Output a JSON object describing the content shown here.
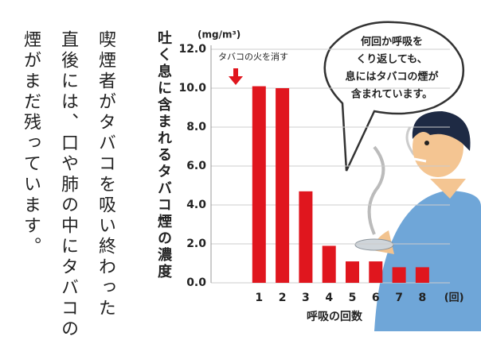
{
  "text": {
    "lines": [
      "喫煙者がタバコを吸い終わった",
      "直後には、口や肺の中にタバコの",
      "煙がまだ残っています。"
    ]
  },
  "bubble": {
    "lines": [
      "何回か呼吸を",
      "くり返しても、",
      "息にはタバコの煙が",
      "含まれています。"
    ]
  },
  "chart_data": {
    "type": "bar",
    "y_label": "吐く息に含まれるタバコ煙の濃度",
    "unit": "(mg/m³)",
    "annotation": "タバコの火を消す",
    "x_label": "呼吸の回数",
    "x_unit": "(回)",
    "categories": [
      "1",
      "2",
      "3",
      "4",
      "5",
      "6",
      "7",
      "8"
    ],
    "values": [
      10.1,
      10.0,
      4.7,
      1.9,
      1.1,
      1.1,
      0.8,
      0.8
    ],
    "color": "#e0161e",
    "ylim": [
      0,
      12
    ],
    "yticks": [
      {
        "value": 0,
        "label": "0.0"
      },
      {
        "value": 2,
        "label": "2.0"
      },
      {
        "value": 4,
        "label": "4.0"
      },
      {
        "value": 6,
        "label": "6.0"
      },
      {
        "value": 8,
        "label": "8.0"
      },
      {
        "value": 10,
        "label": "10.0"
      },
      {
        "value": 12,
        "label": "12.0"
      }
    ],
    "grid": true
  }
}
